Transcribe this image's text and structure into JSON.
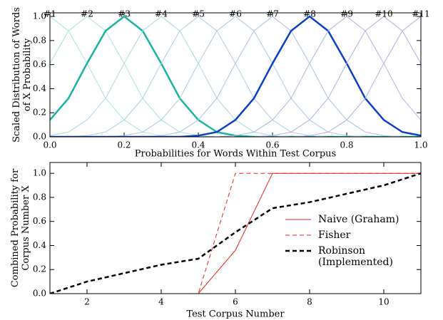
{
  "chart_data": [
    {
      "type": "line",
      "ylabel": "Scaled Distribution of Words of X Probability",
      "xlabel": "Probabilities for Words Within Test Corpus",
      "x": [
        0,
        0.05,
        0.1,
        0.15,
        0.2,
        0.25,
        0.3,
        0.35,
        0.4,
        0.45,
        0.5,
        0.55,
        0.6,
        0.65,
        0.7,
        0.75,
        0.8,
        0.85,
        0.9,
        0.95,
        1
      ],
      "series": [
        {
          "name": "#1",
          "color": "#a8e6dc",
          "linewidth": 1,
          "values": [
            1,
            0.88,
            0.61,
            0.32,
            0.14,
            0.04,
            0.01,
            0,
            0,
            0,
            0,
            0,
            0,
            0,
            0,
            0,
            0,
            0,
            0,
            0,
            0
          ]
        },
        {
          "name": "#2",
          "color": "#a5e2da",
          "linewidth": 1,
          "values": [
            0.61,
            0.88,
            1,
            0.88,
            0.61,
            0.32,
            0.14,
            0.04,
            0.01,
            0,
            0,
            0,
            0,
            0,
            0,
            0,
            0,
            0,
            0,
            0,
            0
          ]
        },
        {
          "name": "#3",
          "color": "#17b3a2",
          "linewidth": 2.5,
          "values": [
            0.14,
            0.32,
            0.61,
            0.88,
            1,
            0.88,
            0.61,
            0.32,
            0.14,
            0.04,
            0.01,
            0,
            0,
            0,
            0,
            0,
            0,
            0,
            0,
            0,
            0
          ]
        },
        {
          "name": "#4",
          "color": "#a8d8e0",
          "linewidth": 1,
          "values": [
            0.01,
            0.04,
            0.14,
            0.32,
            0.61,
            0.88,
            1,
            0.88,
            0.61,
            0.32,
            0.14,
            0.04,
            0.01,
            0,
            0,
            0,
            0,
            0,
            0,
            0,
            0
          ]
        },
        {
          "name": "#5",
          "color": "#a8cfe4",
          "linewidth": 1,
          "values": [
            0,
            0,
            0.01,
            0.04,
            0.14,
            0.32,
            0.61,
            0.88,
            1,
            0.88,
            0.61,
            0.32,
            0.14,
            0.04,
            0.01,
            0,
            0,
            0,
            0,
            0,
            0
          ]
        },
        {
          "name": "#6",
          "color": "#a8c8e6",
          "linewidth": 1,
          "values": [
            0,
            0,
            0,
            0,
            0.01,
            0.04,
            0.14,
            0.32,
            0.61,
            0.88,
            1,
            0.88,
            0.61,
            0.32,
            0.14,
            0.04,
            0.01,
            0,
            0,
            0,
            0
          ]
        },
        {
          "name": "#7",
          "color": "#a9c0e8",
          "linewidth": 1,
          "values": [
            0,
            0,
            0,
            0,
            0,
            0,
            0.01,
            0.04,
            0.14,
            0.32,
            0.61,
            0.88,
            1,
            0.88,
            0.61,
            0.32,
            0.14,
            0.04,
            0.01,
            0,
            0
          ]
        },
        {
          "name": "#8",
          "color": "#0b3fc8",
          "linewidth": 2.5,
          "values": [
            0,
            0,
            0,
            0,
            0,
            0,
            0,
            0,
            0.01,
            0.04,
            0.14,
            0.32,
            0.61,
            0.88,
            1,
            0.88,
            0.61,
            0.32,
            0.14,
            0.04,
            0.01
          ]
        },
        {
          "name": "#9",
          "color": "#aab5e8",
          "linewidth": 1,
          "values": [
            0,
            0,
            0,
            0,
            0,
            0,
            0,
            0,
            0,
            0,
            0.01,
            0.04,
            0.14,
            0.32,
            0.61,
            0.88,
            1,
            0.88,
            0.61,
            0.32,
            0.14
          ]
        },
        {
          "name": "#10",
          "color": "#aeb0ea",
          "linewidth": 1,
          "values": [
            0,
            0,
            0,
            0,
            0,
            0,
            0,
            0,
            0,
            0,
            0,
            0,
            0.01,
            0.04,
            0.14,
            0.32,
            0.61,
            0.88,
            1,
            0.88,
            0.61
          ]
        },
        {
          "name": "#11",
          "color": "#b2acea",
          "linewidth": 1,
          "values": [
            0,
            0,
            0,
            0,
            0,
            0,
            0,
            0,
            0,
            0,
            0,
            0,
            0,
            0,
            0.01,
            0.04,
            0.14,
            0.32,
            0.61,
            0.88,
            1
          ]
        }
      ],
      "xlim": [
        0,
        1.0
      ],
      "xticks": [
        {
          "value": 0,
          "label": "0.0"
        },
        {
          "value": 0.2,
          "label": "0.2"
        },
        {
          "value": 0.4,
          "label": "0.4"
        },
        {
          "value": 0.6,
          "label": "0.6"
        },
        {
          "value": 0.8,
          "label": "0.8"
        },
        {
          "value": 1,
          "label": "1.0"
        }
      ],
      "ylim": [
        0,
        1.03
      ],
      "yticks": [
        {
          "value": 0,
          "label": "0.0"
        },
        {
          "value": 0.2,
          "label": "0.2"
        },
        {
          "value": 0.4,
          "label": "0.4"
        },
        {
          "value": 0.6,
          "label": "0.6"
        },
        {
          "value": 0.8,
          "label": "0.8"
        },
        {
          "value": 1,
          "label": "1.0"
        }
      ],
      "series_labels_at_peak": true
    },
    {
      "type": "line",
      "ylabel": "Combined Probability for Corpus Number X",
      "xlabel": "Test Corpus Number",
      "x": [
        1,
        2,
        3,
        4,
        5,
        6,
        7,
        8,
        9,
        10,
        11
      ],
      "series": [
        {
          "name": "Naive (Graham)",
          "color": "#e8231c",
          "linewidth": 1,
          "dash": "solid",
          "values": [
            0,
            0,
            0,
            0,
            0,
            0.36,
            1,
            1,
            1,
            1,
            1
          ]
        },
        {
          "name": "Fisher",
          "color": "#e8231c",
          "linewidth": 1,
          "dash": "dashed",
          "values": [
            0,
            0,
            0,
            0,
            0,
            1,
            1,
            1,
            1,
            1,
            1
          ]
        },
        {
          "name": "Robinson (Implemented)",
          "color": "#000000",
          "linewidth": 2.5,
          "dash": "dashed",
          "values": [
            0,
            0.1,
            0.17,
            0.24,
            0.29,
            0.51,
            0.71,
            0.76,
            0.83,
            0.9,
            1
          ]
        }
      ],
      "xlim": [
        1,
        11
      ],
      "xticks": [
        2,
        4,
        6,
        8,
        10
      ],
      "ylim": [
        0,
        1.09
      ],
      "yticks": [
        {
          "value": 0,
          "label": "0.0"
        },
        {
          "value": 0.2,
          "label": "0.2"
        },
        {
          "value": 0.4,
          "label": "0.4"
        },
        {
          "value": 0.6,
          "label": "0.6"
        },
        {
          "value": 0.8,
          "label": "0.8"
        },
        {
          "value": 1,
          "label": "1.0"
        }
      ],
      "legend": "center right"
    }
  ]
}
